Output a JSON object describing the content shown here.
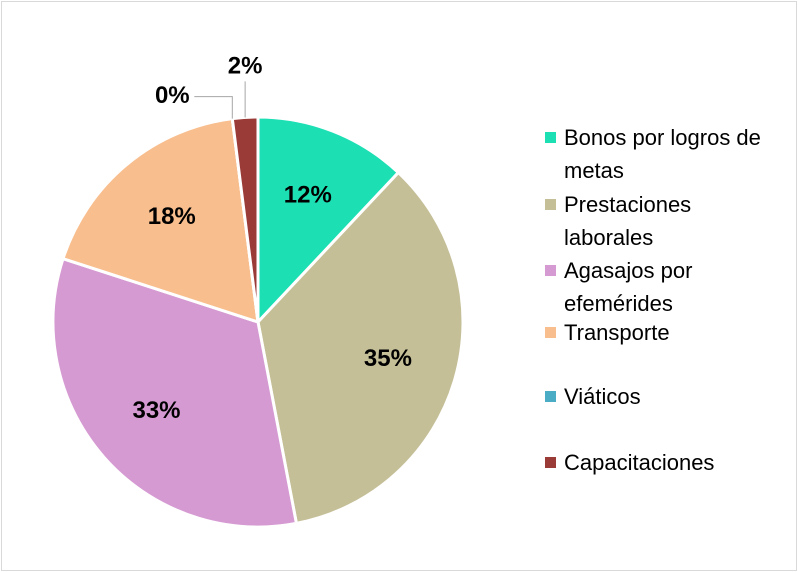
{
  "chart_data": {
    "type": "pie",
    "categories": [
      "Bonos por logros de metas",
      "Prestaciones laborales",
      "Agasajos por efemérides",
      "Transporte",
      "Viáticos",
      "Capacitaciones"
    ],
    "values": [
      12,
      35,
      33,
      18,
      0,
      2
    ],
    "value_labels": [
      "12%",
      "35%",
      "33%",
      "18%",
      "0%",
      "2%"
    ],
    "colors": [
      "#1ddfb4",
      "#c5bf98",
      "#d59ad2",
      "#f8be8e",
      "#4bacc6",
      "#9b3b38"
    ],
    "legend": "right"
  }
}
